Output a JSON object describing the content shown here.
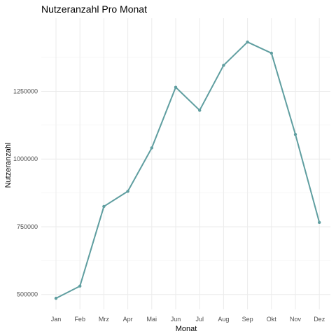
{
  "chart_data": {
    "type": "line",
    "title": "Nutzeranzahl Pro Monat",
    "xlabel": "Monat",
    "ylabel": "Nutzeranzahl",
    "categories": [
      "Jan",
      "Feb",
      "Mrz",
      "Apr",
      "Mai",
      "Jun",
      "Jul",
      "Aug",
      "Sep",
      "Okt",
      "Nov",
      "Dez"
    ],
    "series": [
      {
        "values": [
          486000,
          531000,
          825000,
          881000,
          1041000,
          1265000,
          1180000,
          1346000,
          1432000,
          1391000,
          1091000,
          766000
        ],
        "color": "#5f9ea0"
      }
    ],
    "ylim": [
      445000,
      1520000
    ],
    "yticks": [
      500000,
      750000,
      1000000,
      1250000
    ],
    "ytick_labels": [
      "500000",
      "750000",
      "1000000",
      "1250000"
    ],
    "grid": true,
    "legend": "none"
  }
}
